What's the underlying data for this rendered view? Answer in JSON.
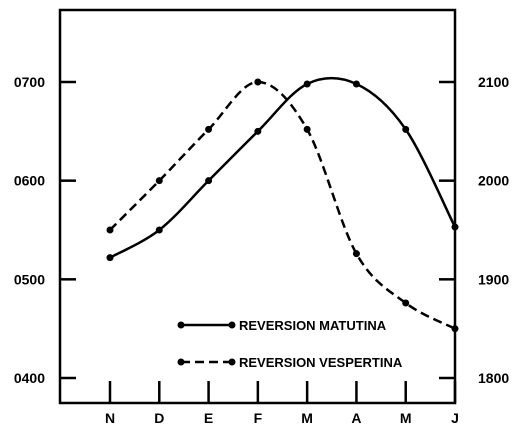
{
  "chart_data": {
    "type": "line",
    "categories": [
      "N",
      "D",
      "E",
      "F",
      "M",
      "A",
      "M",
      "J"
    ],
    "left_axis": {
      "ticks": [
        "0400",
        "0500",
        "0600",
        "0700"
      ],
      "ylim": [
        400,
        760
      ]
    },
    "right_axis": {
      "ticks": [
        "1800",
        "1900",
        "2000",
        "2100"
      ],
      "ylim": [
        1800,
        2160
      ]
    },
    "grid": false,
    "legend_position": "bottom-right",
    "series": [
      {
        "name": "REVERSION MATUTINA",
        "style": "solid",
        "values": [
          522,
          550,
          600,
          650,
          698,
          698,
          652,
          553
        ]
      },
      {
        "name": "REVERSION VESPERTINA",
        "style": "dashed",
        "values": [
          550,
          600,
          652,
          700,
          652,
          526,
          476,
          450
        ]
      }
    ],
    "colors": {
      "line": "#000000",
      "background": "#ffffff"
    }
  }
}
